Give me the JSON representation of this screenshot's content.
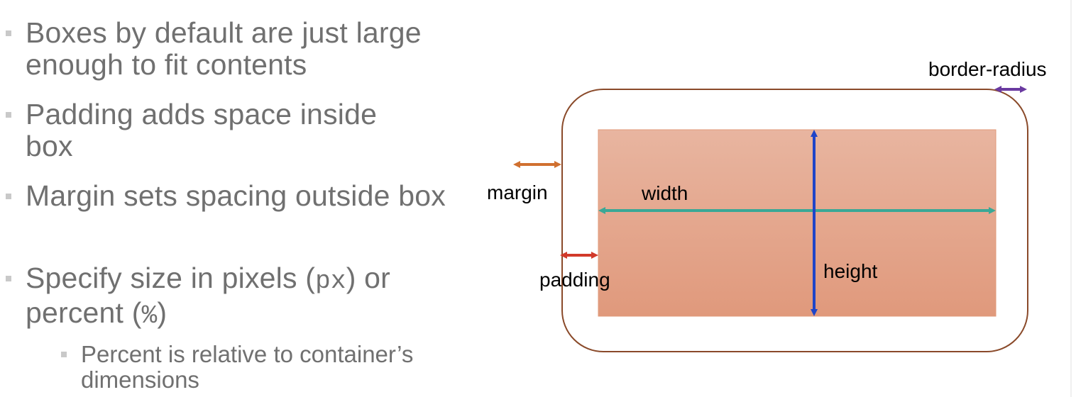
{
  "bullets": [
    {
      "text": "Boxes by default are just large enough to fit contents"
    },
    {
      "text": "Padding adds space inside box"
    },
    {
      "text": "Margin sets spacing outside box"
    },
    {
      "text_before_px": "Specify size in pixels (",
      "px_code": "px",
      "text_between": ") or percent (",
      "percent_code": "%",
      "text_after": ")"
    }
  ],
  "sub_bullet": {
    "text": "Percent is relative to container’s dimensions"
  },
  "diagram": {
    "labels": {
      "border_radius": "border-radius",
      "margin": "margin",
      "width": "width",
      "padding": "padding",
      "height": "height"
    },
    "colors": {
      "border": "#8a4a2a",
      "content_fill_top": "#e8b5a0",
      "content_fill_bottom": "#e0997c",
      "content_stroke": "#e09a7a",
      "margin_arrow": "#d07030",
      "padding_arrow": "#d23a2a",
      "width_arrow": "#3aa896",
      "height_arrow": "#1f45c8",
      "border_radius_arrow": "#6a3aa0"
    }
  }
}
